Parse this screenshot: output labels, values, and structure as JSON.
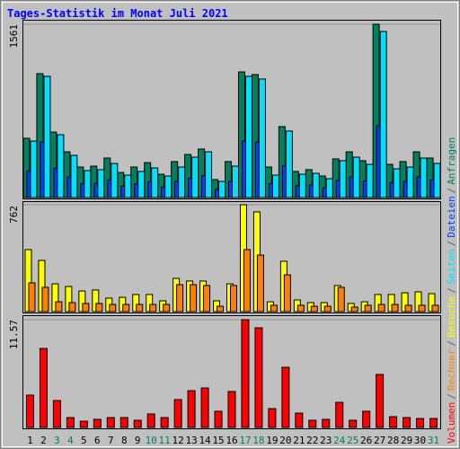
{
  "legend_separator": "/",
  "chart_data": [
    {
      "type": "bar",
      "title": "Tages-Statistik im Monat Juli 2021",
      "ylim": [
        0,
        1561
      ],
      "yticks": [
        1561
      ],
      "series": [
        {
          "name": "Anfragen",
          "color": "#00805C",
          "values": [
            534,
            1116,
            590,
            412,
            275,
            283,
            356,
            226,
            275,
            315,
            210,
            324,
            388,
            437,
            162,
            324,
            1132,
            1108,
            275,
            639,
            235,
            251,
            194,
            348,
            412,
            332,
            1561,
            299,
            324,
            412,
            356
          ]
        },
        {
          "name": "Dateien",
          "color": "#0040FF",
          "values": [
            240,
            500,
            265,
            185,
            124,
            127,
            160,
            102,
            124,
            142,
            95,
            146,
            175,
            197,
            73,
            146,
            510,
            499,
            124,
            288,
            106,
            113,
            87,
            157,
            185,
            149,
            647,
            135,
            146,
            185,
            160
          ]
        },
        {
          "name": "Seiten",
          "color": "#00E0FF",
          "values": [
            509,
            1092,
            566,
            380,
            243,
            251,
            307,
            202,
            235,
            267,
            194,
            275,
            364,
            412,
            146,
            283,
            1092,
            1068,
            202,
            599,
            210,
            218,
            170,
            332,
            364,
            299,
            1496,
            259,
            275,
            356,
            307
          ]
        }
      ]
    },
    {
      "type": "bar",
      "ylim": [
        0,
        762
      ],
      "yticks": [
        762
      ],
      "series": [
        {
          "name": "Besuche",
          "color": "#FFFF00",
          "values": [
            442,
            365,
            198,
            179,
            147,
            154,
            96,
            102,
            122,
            122,
            77,
            237,
            218,
            218,
            77,
            198,
            762,
            711,
            70,
            359,
            83,
            64,
            64,
            186,
            58,
            70,
            122,
            122,
            134,
            141,
            128
          ]
        },
        {
          "name": "Rechner",
          "color": "#FF8000",
          "values": [
            205,
            173,
            70,
            64,
            58,
            58,
            51,
            51,
            51,
            51,
            51,
            192,
            192,
            186,
            38,
            186,
            442,
            403,
            45,
            262,
            45,
            38,
            38,
            173,
            32,
            45,
            51,
            51,
            45,
            45,
            45
          ]
        }
      ]
    },
    {
      "type": "bar",
      "ylim": [
        0,
        11.57
      ],
      "yticks": [
        11.57
      ],
      "categories": [
        "1",
        "2",
        "3",
        "4",
        "5",
        "6",
        "7",
        "8",
        "9",
        "10",
        "11",
        "12",
        "13",
        "14",
        "15",
        "16",
        "17",
        "18",
        "19",
        "20",
        "21",
        "22",
        "23",
        "24",
        "25",
        "26",
        "27",
        "28",
        "29",
        "30",
        "31"
      ],
      "category_colors": [
        "#000000",
        "#000000",
        "#00805C",
        "#00805C",
        "#000000",
        "#000000",
        "#000000",
        "#000000",
        "#000000",
        "#00805C",
        "#00805C",
        "#000000",
        "#000000",
        "#000000",
        "#000000",
        "#000000",
        "#00805C",
        "#00805C",
        "#000000",
        "#000000",
        "#000000",
        "#000000",
        "#000000",
        "#00805C",
        "#00805C",
        "#000000",
        "#000000",
        "#000000",
        "#000000",
        "#000000",
        "#00805C"
      ],
      "series": [
        {
          "name": "Volumen",
          "color": "#FF0000",
          "values": [
            3.47,
            8.48,
            2.89,
            1.06,
            0.67,
            0.87,
            1.06,
            1.06,
            0.77,
            1.45,
            1.06,
            2.99,
            3.95,
            4.24,
            1.74,
            3.86,
            11.57,
            10.7,
            2.02,
            6.46,
            1.54,
            0.77,
            0.87,
            2.7,
            0.77,
            1.74,
            5.69,
            1.16,
            1.06,
            0.96,
            0.96
          ]
        }
      ]
    }
  ]
}
